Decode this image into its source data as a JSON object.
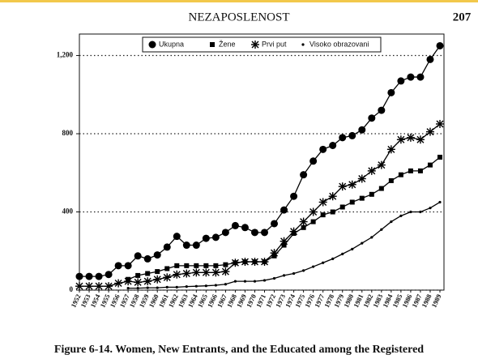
{
  "page_header": "NEZAPOSLENOST",
  "page_number": "207",
  "caption": "Figure 6-14. Women, New Entrants, and the Educated among the Registered",
  "chart_data": {
    "type": "line",
    "categories": [
      "1952",
      "1953",
      "1954",
      "1955",
      "1956",
      "1957",
      "1958",
      "1959",
      "1960",
      "1961",
      "1962",
      "1963",
      "1964",
      "1965",
      "1966",
      "1967",
      "1968",
      "1969",
      "1970",
      "1971",
      "1972",
      "1973",
      "1974",
      "1975",
      "1976",
      "1977",
      "1978",
      "1979",
      "1980",
      "1981",
      "1982",
      "1983",
      "1984",
      "1985",
      "1986",
      "1987",
      "1988",
      "1989"
    ],
    "series": [
      {
        "name": "Ukupna",
        "color": "#000000",
        "marker": "circle",
        "values": [
          70,
          70,
          70,
          80,
          125,
          125,
          175,
          160,
          180,
          220,
          275,
          230,
          230,
          265,
          270,
          295,
          330,
          320,
          295,
          295,
          340,
          410,
          480,
          590,
          660,
          720,
          740,
          780,
          790,
          820,
          880,
          920,
          1010,
          1070,
          1090,
          1090,
          1180,
          1250
        ]
      },
      {
        "name": "Žene",
        "color": "#000000",
        "marker": "square",
        "values": [
          null,
          null,
          null,
          null,
          null,
          55,
          75,
          85,
          95,
          110,
          125,
          125,
          125,
          125,
          125,
          130,
          140,
          145,
          145,
          145,
          175,
          230,
          290,
          320,
          350,
          385,
          400,
          425,
          450,
          470,
          490,
          520,
          560,
          590,
          610,
          610,
          640,
          680
        ]
      },
      {
        "name": "Prvi put",
        "color": "#000000",
        "marker": "asterisk",
        "values": [
          20,
          20,
          20,
          20,
          35,
          45,
          40,
          45,
          55,
          65,
          80,
          85,
          90,
          90,
          90,
          95,
          140,
          145,
          145,
          145,
          190,
          250,
          300,
          350,
          400,
          450,
          480,
          530,
          540,
          570,
          610,
          640,
          720,
          770,
          780,
          770,
          810,
          850
        ]
      },
      {
        "name": "Visoko obrazovani",
        "color": "#000000",
        "marker": "dot",
        "values": [
          null,
          null,
          null,
          null,
          null,
          10,
          10,
          12,
          12,
          15,
          15,
          18,
          20,
          22,
          25,
          30,
          45,
          45,
          45,
          50,
          60,
          75,
          85,
          100,
          120,
          140,
          160,
          185,
          210,
          240,
          270,
          310,
          350,
          380,
          400,
          400,
          420,
          450
        ]
      }
    ],
    "ylim": [
      0,
      1310
    ],
    "yticks": [
      0,
      400,
      800,
      {
        "value": 1200,
        "label": "1,200"
      }
    ],
    "grid": true
  }
}
